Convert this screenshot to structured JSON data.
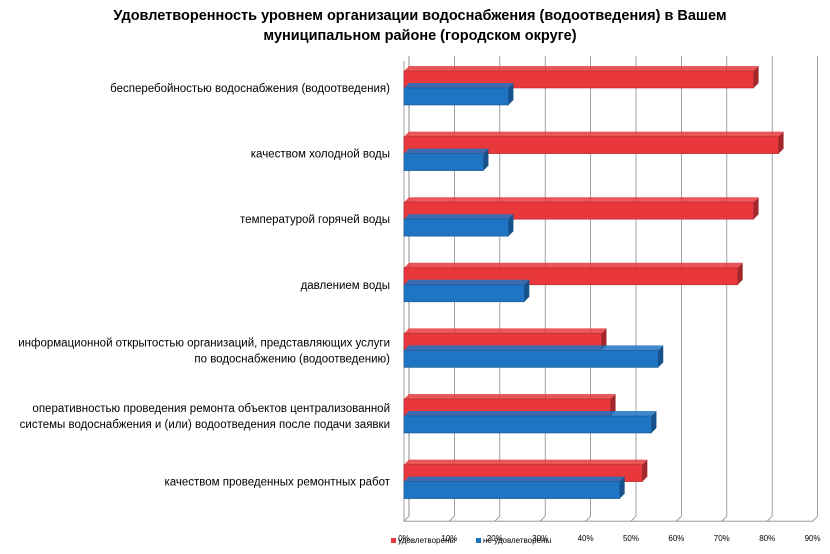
{
  "chart_data": {
    "type": "bar",
    "orientation": "horizontal",
    "style": "3d",
    "title": [
      "Удовлетворенность уровнем организации водоснабжения (водоотведения) в Вашем",
      "муниципальном районе (городском округе)"
    ],
    "categories": [
      [
        "бесперебойностью водоснабжения (водоотведения)"
      ],
      [
        "качеством холодной воды"
      ],
      [
        "температурой горячей воды"
      ],
      [
        "давлением воды"
      ],
      [
        "информационной открытостью организаций, представляющих услуги",
        "по водоснабжению (водоотведению)"
      ],
      [
        "оперативностью проведения  ремонта объектов  централизованной",
        "системы водоснабжения и (или) водоотведения  после подачи заявки"
      ],
      [
        "качеством проведенных ремонтных работ"
      ]
    ],
    "series": [
      {
        "name": "удовлетворены",
        "color": "#e8383c",
        "values": [
          77,
          82.5,
          77,
          73.5,
          43.5,
          45.5,
          52.5
        ]
      },
      {
        "name": "не удовлетворены",
        "color": "#1f74c4",
        "values": [
          23,
          17.5,
          23,
          26.5,
          56,
          54.5,
          47.5
        ]
      }
    ],
    "xlim": [
      0,
      90
    ],
    "ticks": [
      "0%",
      "10%",
      "20%",
      "30%",
      "40%",
      "50%",
      "60%",
      "70%",
      "80%",
      "90%"
    ],
    "grid": true,
    "legend": "bottom"
  }
}
